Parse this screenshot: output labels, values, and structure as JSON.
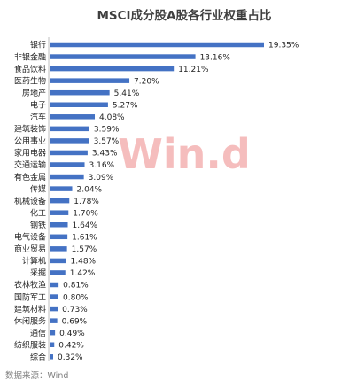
{
  "chart_data": {
    "type": "bar",
    "orientation": "horizontal",
    "title": "MSCI成分股A股各行业权重占比",
    "categories": [
      "银行",
      "非银金融",
      "食品饮料",
      "医药生物",
      "房地产",
      "电子",
      "汽车",
      "建筑装饰",
      "公用事业",
      "家用电器",
      "交通运输",
      "有色金属",
      "传媒",
      "机械设备",
      "化工",
      "钢铁",
      "电气设备",
      "商业贸易",
      "计算机",
      "采掘",
      "农林牧渔",
      "国防军工",
      "建筑材料",
      "休闲服务",
      "通信",
      "纺织服装",
      "综合"
    ],
    "values": [
      19.35,
      13.16,
      11.21,
      7.2,
      5.41,
      5.27,
      4.08,
      3.59,
      3.57,
      3.43,
      3.16,
      3.09,
      2.04,
      1.78,
      1.7,
      1.64,
      1.61,
      1.57,
      1.48,
      1.42,
      0.81,
      0.8,
      0.73,
      0.69,
      0.49,
      0.42,
      0.32
    ],
    "value_labels": [
      "19.35%",
      "13.16%",
      "11.21%",
      "7.20%",
      "5.41%",
      "5.27%",
      "4.08%",
      "3.59%",
      "3.57%",
      "3.43%",
      "3.16%",
      "3.09%",
      "2.04%",
      "1.78%",
      "1.70%",
      "1.64%",
      "1.61%",
      "1.57%",
      "1.48%",
      "1.42%",
      "0.81%",
      "0.80%",
      "0.73%",
      "0.69%",
      "0.49%",
      "0.42%",
      "0.32%"
    ],
    "xlabel": "",
    "ylabel": "",
    "bar_color": "#4472c4",
    "grid": false,
    "legend": "none"
  },
  "watermark": "Win.d",
  "source_note": "数据来源：Wind"
}
